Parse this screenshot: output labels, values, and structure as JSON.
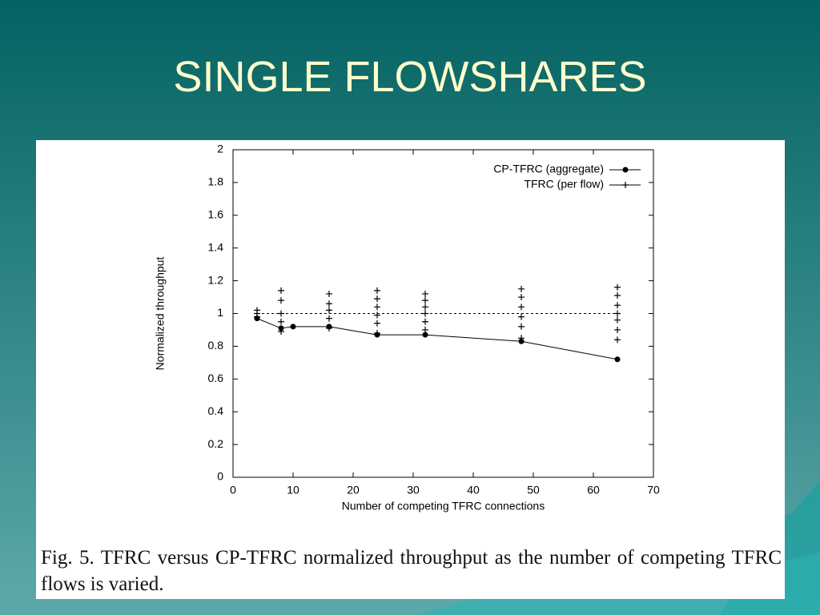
{
  "slide": {
    "title": "SINGLE FLOWSHARES"
  },
  "chart_data": {
    "type": "line",
    "x_label": "Number of competing TFRC connections",
    "y_label": "Normalized throughput",
    "xlim": [
      0,
      70
    ],
    "xticks": [
      0,
      10,
      20,
      30,
      40,
      50,
      60,
      70
    ],
    "ylim": [
      0,
      2
    ],
    "yticks": [
      0,
      0.2,
      0.4,
      0.6,
      0.8,
      1,
      1.2,
      1.4,
      1.6,
      1.8,
      2
    ],
    "reference_line": 1,
    "legend": "top-right",
    "series": [
      {
        "name": "CP-TFRC (aggregate)",
        "color": "#000000",
        "marker": "circle",
        "x": [
          4,
          8,
          10,
          16,
          24,
          32,
          48,
          64
        ],
        "values": [
          0.97,
          0.91,
          0.92,
          0.92,
          0.87,
          0.87,
          0.83,
          0.72
        ]
      },
      {
        "name": "TFRC (per flow)",
        "color": "#000000",
        "marker": "plus",
        "connect": false,
        "x": [
          4,
          4,
          4,
          8,
          8,
          8,
          8,
          8,
          16,
          16,
          16,
          16,
          16,
          24,
          24,
          24,
          24,
          24,
          24,
          32,
          32,
          32,
          32,
          32,
          32,
          48,
          48,
          48,
          48,
          48,
          48,
          64,
          64,
          64,
          64,
          64,
          64,
          64
        ],
        "values": [
          0.98,
          1.0,
          1.02,
          0.89,
          0.95,
          1.0,
          1.08,
          1.14,
          0.91,
          0.97,
          1.02,
          1.06,
          1.12,
          0.88,
          0.94,
          0.99,
          1.04,
          1.09,
          1.14,
          0.9,
          0.95,
          1.0,
          1.04,
          1.08,
          1.12,
          0.85,
          0.92,
          0.98,
          1.04,
          1.1,
          1.15,
          0.84,
          0.9,
          0.96,
          1.0,
          1.05,
          1.11,
          1.16
        ]
      }
    ]
  },
  "caption": {
    "text": "Fig. 5.   TFRC versus CP-TFRC normalized throughput as the number of competing TFRC flows is varied."
  }
}
